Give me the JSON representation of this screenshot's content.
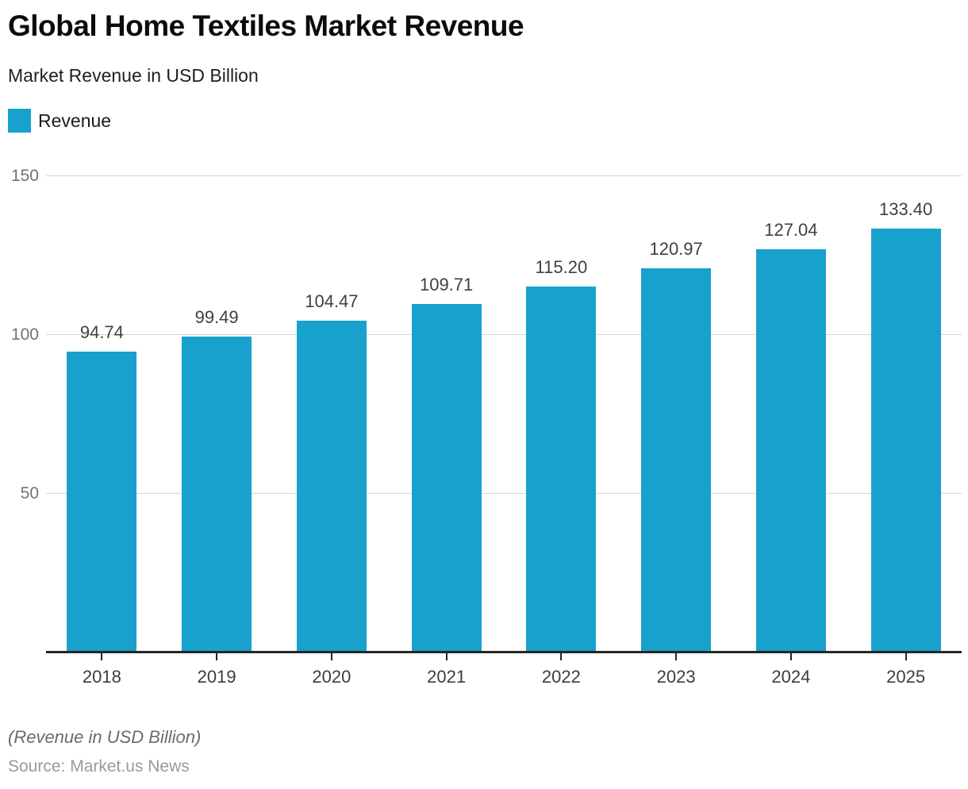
{
  "header": {
    "title": "Global Home Textiles Market Revenue",
    "subtitle": "Market Revenue in USD Billion"
  },
  "legend": {
    "label": "Revenue",
    "color": "#18A1CD"
  },
  "chart_data": {
    "type": "bar",
    "title": "Global Home Textiles Market Revenue",
    "subtitle": "Market Revenue in USD Billion",
    "categories": [
      "2018",
      "2019",
      "2020",
      "2021",
      "2022",
      "2023",
      "2024",
      "2025"
    ],
    "series": [
      {
        "name": "Revenue",
        "values": [
          94.74,
          99.49,
          104.47,
          109.71,
          115.2,
          120.97,
          127.04,
          133.4
        ],
        "value_labels": [
          "94.74",
          "99.49",
          "104.47",
          "109.71",
          "115.20",
          "120.97",
          "127.04",
          "133.40"
        ]
      }
    ],
    "xlabel": "",
    "ylabel": "",
    "ylim": [
      0,
      150
    ],
    "yticks": [
      50,
      100,
      150
    ],
    "grid": "horizontal",
    "legend_position": "top-left",
    "bar_color": "#18A1CD",
    "gridline_color": "#d5d5d5",
    "axis_color": "#262626"
  },
  "footer": {
    "note": "(Revenue in USD Billion)",
    "source": "Source: Market.us News"
  }
}
